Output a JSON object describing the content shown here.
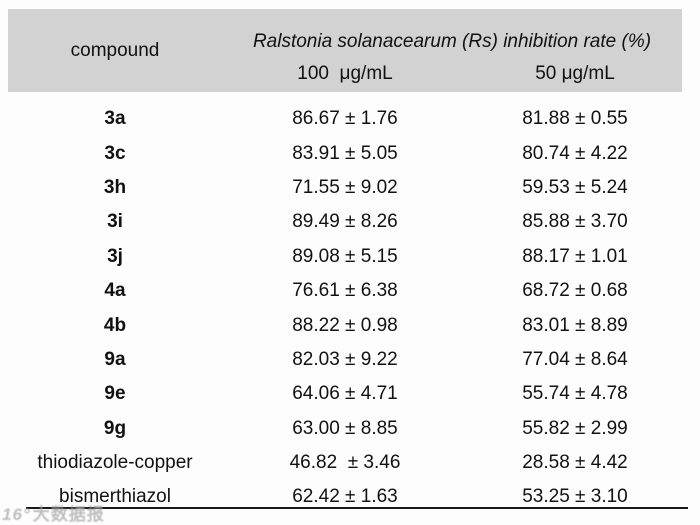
{
  "colors": {
    "header_bg": "#d2d2d2",
    "text": "#111111",
    "background": "#fdfdfd",
    "bottom_rule": "#1a1a1a",
    "watermark": "#989898"
  },
  "table": {
    "header": {
      "compound": "compound",
      "span_title": "Ralstonia solanacearum (Rs) inhibition rate (%)",
      "conc_100": "100  μg/mL",
      "conc_50": "50 μg/mL"
    },
    "rows": [
      {
        "compound": "3a",
        "c100": "86.67 ± 1.76",
        "c50": "81.88 ± 0.55"
      },
      {
        "compound": "3c",
        "c100": "83.91 ± 5.05",
        "c50": "80.74 ± 4.22"
      },
      {
        "compound": "3h",
        "c100": "71.55 ± 9.02",
        "c50": "59.53 ± 5.24"
      },
      {
        "compound": "3i",
        "c100": "89.49 ± 8.26",
        "c50": "85.88 ± 3.70"
      },
      {
        "compound": "3j",
        "c100": "89.08 ± 5.15",
        "c50": "88.17 ± 1.01"
      },
      {
        "compound": "4a",
        "c100": "76.61 ± 6.38",
        "c50": "68.72 ± 0.68"
      },
      {
        "compound": "4b",
        "c100": "88.22 ± 0.98",
        "c50": "83.01 ± 8.89"
      },
      {
        "compound": "9a",
        "c100": "82.03 ± 9.22",
        "c50": "77.04 ± 8.64"
      },
      {
        "compound": "9e",
        "c100": "64.06 ± 4.71",
        "c50": "55.74 ± 4.78"
      },
      {
        "compound": "9g",
        "c100": "63.00 ± 8.85",
        "c50": "55.82 ± 2.99"
      },
      {
        "compound": "thiodiazole-copper",
        "c100": "46.82  ± 3.46",
        "c50": "28.58 ± 4.42"
      },
      {
        "compound": "bismerthiazol",
        "c100": "62.42 ± 1.63",
        "c50": "53.25 ± 3.10"
      }
    ]
  },
  "watermark": {
    "logo": "16°",
    "text": "大数据报"
  },
  "chart_data": {
    "type": "table",
    "title": "Ralstonia solanacearum (Rs) inhibition rate (%)",
    "columns": [
      "compound",
      "100 μg/mL",
      "50 μg/mL"
    ],
    "categories": [
      "3a",
      "3c",
      "3h",
      "3i",
      "3j",
      "4a",
      "4b",
      "9a",
      "9e",
      "9g",
      "thiodiazole-copper",
      "bismerthiazol"
    ],
    "series": [
      {
        "name": "100 μg/mL",
        "mean": [
          86.67,
          83.91,
          71.55,
          89.49,
          89.08,
          76.61,
          88.22,
          82.03,
          64.06,
          63.0,
          46.82,
          62.42
        ],
        "sd": [
          1.76,
          5.05,
          9.02,
          8.26,
          5.15,
          6.38,
          0.98,
          9.22,
          4.71,
          8.85,
          3.46,
          1.63
        ]
      },
      {
        "name": "50 μg/mL",
        "mean": [
          81.88,
          80.74,
          59.53,
          85.88,
          88.17,
          68.72,
          83.01,
          77.04,
          55.74,
          55.82,
          28.58,
          53.25
        ],
        "sd": [
          0.55,
          4.22,
          5.24,
          3.7,
          1.01,
          0.68,
          8.89,
          8.64,
          4.78,
          2.99,
          4.42,
          3.1
        ]
      }
    ],
    "layout": {
      "header_shaded": true,
      "bottom_rule": true,
      "grid": false
    }
  }
}
